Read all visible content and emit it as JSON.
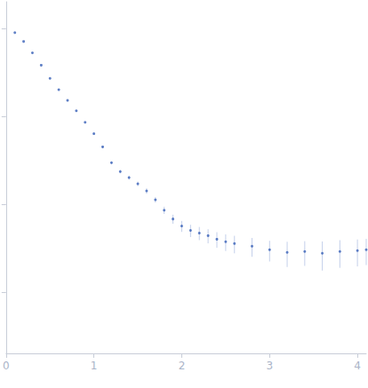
{
  "chart_data": {
    "type": "scatter",
    "x": [
      0.1,
      0.2,
      0.3,
      0.4,
      0.5,
      0.6,
      0.7,
      0.8,
      0.9,
      1.0,
      1.1,
      1.2,
      1.3,
      1.4,
      1.5,
      1.6,
      1.7,
      1.8,
      1.9,
      2.0,
      2.1,
      2.2,
      2.3,
      2.4,
      2.5,
      2.6,
      2.8,
      3.0,
      3.2,
      3.4,
      3.6,
      3.8,
      4.0,
      4.1
    ],
    "values": [
      0.891,
      0.708,
      0.525,
      0.38,
      0.269,
      0.2,
      0.151,
      0.115,
      0.0851,
      0.0631,
      0.0447,
      0.0295,
      0.0234,
      0.02,
      0.017,
      0.0141,
      0.0112,
      0.00851,
      0.00676,
      0.00562,
      0.00501,
      0.00468,
      0.00437,
      0.00398,
      0.00372,
      0.00355,
      0.00331,
      0.00302,
      0.00282,
      0.00288,
      0.00275,
      0.00288,
      0.00295,
      0.00302
    ],
    "errors": [
      0.002,
      0.002,
      0.002,
      0.002,
      0.002,
      0.002,
      0.002,
      0.002,
      0.001,
      0.001,
      0.001,
      0.001,
      0.001,
      0.001,
      0.001,
      0.001,
      0.0008,
      0.0008,
      0.0008,
      0.0008,
      0.0008,
      0.0008,
      0.0008,
      0.0008,
      0.0008,
      0.0008,
      0.0008,
      0.0008,
      0.0009,
      0.0009,
      0.001,
      0.001,
      0.001,
      0.001
    ],
    "color": "#3a62b8",
    "marker": "circle",
    "xlim": [
      0,
      4.1
    ],
    "xticks": [
      0,
      1,
      2,
      3,
      4
    ],
    "ylim": [
      0.0002,
      2
    ],
    "yticks": [
      0.001,
      0.01,
      0.1,
      1
    ],
    "log": "y",
    "grid": false,
    "tick_labels": "x"
  }
}
